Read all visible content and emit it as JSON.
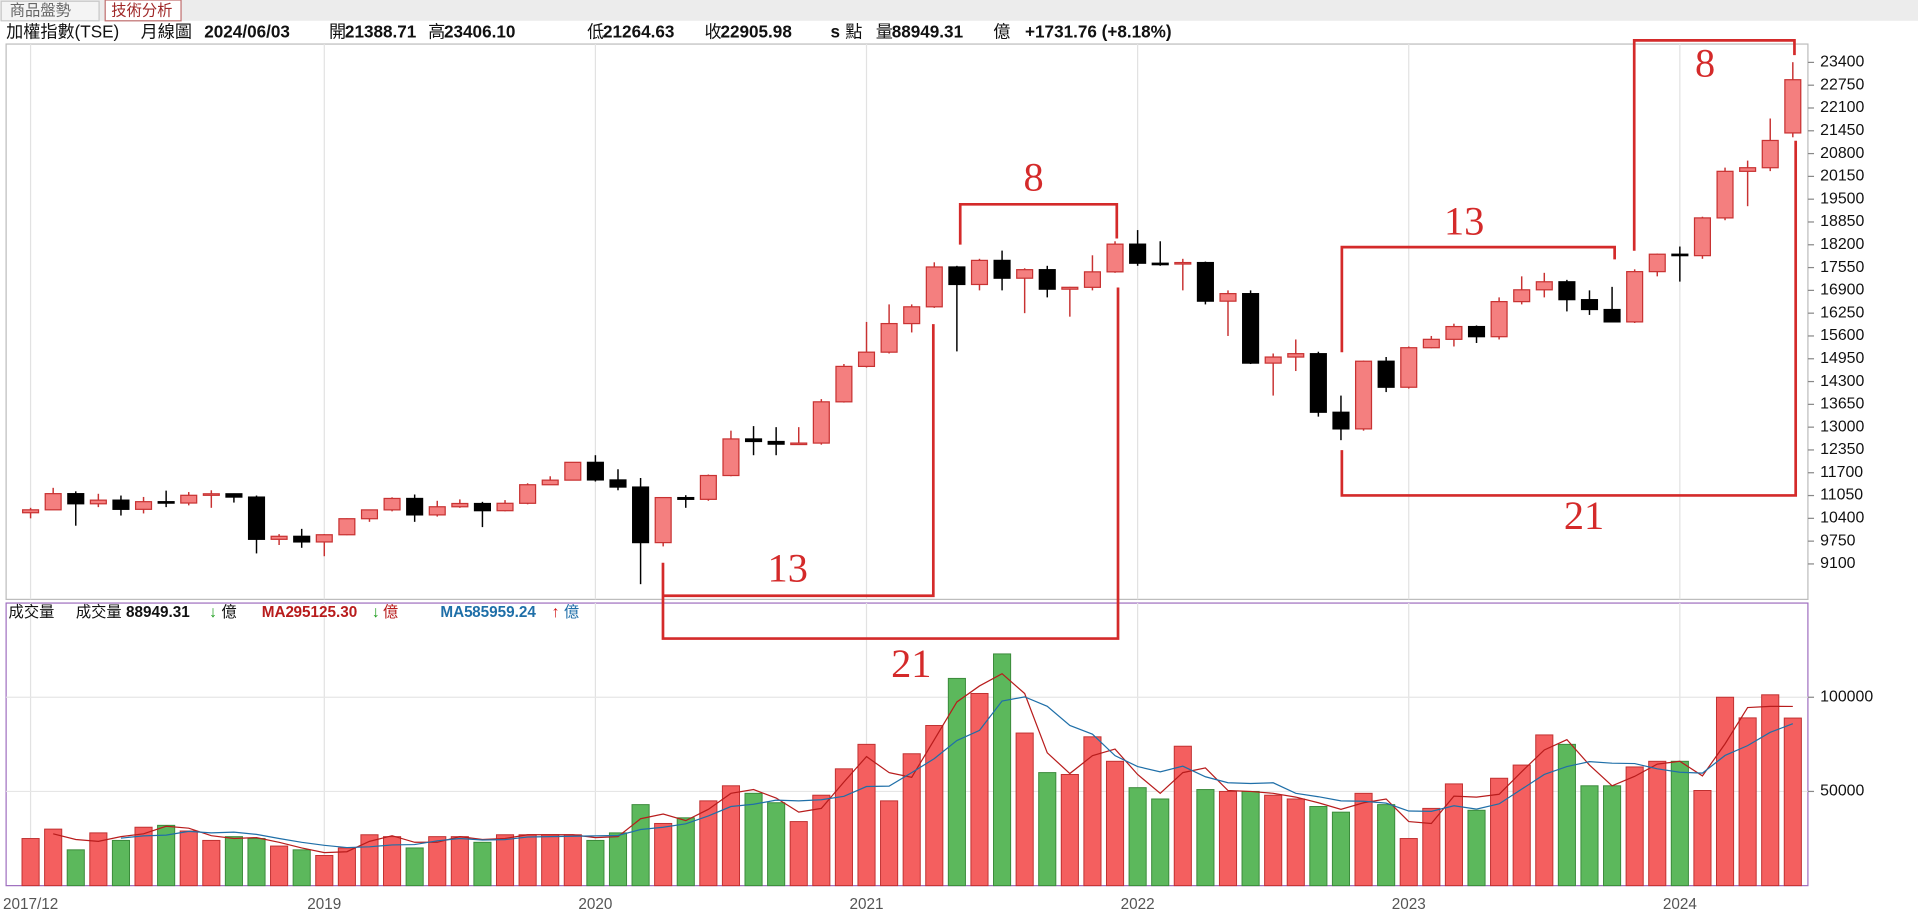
{
  "header": {
    "tabs": [
      "商品盤勢",
      "技術分析"
    ],
    "symbol": "加權指數(TSE)",
    "period": "月線圖",
    "date": "2024/06/03",
    "fields": [
      {
        "label": "開",
        "value": "21388.71"
      },
      {
        "label": "高",
        "value": "23406.10"
      },
      {
        "label": "低",
        "value": "21264.63"
      },
      {
        "label": "收",
        "value": "22905.98"
      }
    ],
    "flag": "s",
    "unit": "點",
    "volume_label": "量",
    "volume": "88949.31",
    "volume_unit": "億",
    "change": "+1731.76 (+8.18%)"
  },
  "chart_data": [
    {
      "type": "candlestick",
      "categories": [
        "2017/12",
        null,
        null,
        null,
        null,
        null,
        null,
        null,
        null,
        null,
        null,
        null,
        null,
        "2019",
        null,
        null,
        null,
        null,
        null,
        null,
        null,
        null,
        null,
        null,
        null,
        "2020",
        null,
        null,
        null,
        null,
        null,
        null,
        null,
        null,
        null,
        null,
        null,
        "2021",
        null,
        null,
        null,
        null,
        null,
        null,
        null,
        null,
        null,
        null,
        null,
        "2022",
        null,
        null,
        null,
        null,
        null,
        null,
        null,
        null,
        null,
        null,
        null,
        "2023",
        null,
        null,
        null,
        null,
        null,
        null,
        null,
        null,
        null,
        null,
        null,
        "2024",
        null,
        null,
        null,
        null,
        null
      ],
      "open": [
        10560,
        10643,
        11104,
        10815,
        10919,
        10657,
        10875,
        10837,
        11057,
        11100,
        11006,
        9802,
        9888,
        9727,
        9932,
        10389,
        10641,
        10967,
        10498,
        10730,
        10823,
        10618,
        10829,
        11358,
        11489,
        11997,
        11495,
        11292,
        9708,
        10992,
        10942,
        11621,
        12664,
        12591,
        12515,
        12546,
        13722,
        14732,
        15138,
        15953,
        16431,
        17567,
        17068,
        17755,
        17247,
        17490,
        16934,
        16987,
        17428,
        18218,
        17674,
        17652,
        17693,
        16592,
        16807,
        14826,
        14999,
        15095,
        13425,
        12950,
        14880,
        14138,
        15265,
        15504,
        15868,
        15579,
        16579,
        16916,
        17145,
        16635,
        16354,
        16001,
        17434,
        17931,
        17890,
        18966,
        20294,
        20397,
        21388.71
      ],
      "high": [
        10700,
        11270,
        11170,
        11100,
        11050,
        11010,
        11190,
        11150,
        11200,
        11110,
        11050,
        9950,
        10100,
        9950,
        10400,
        10650,
        11000,
        11080,
        10900,
        10940,
        10870,
        10920,
        11400,
        11600,
        12000,
        12200,
        11800,
        11550,
        11000,
        11060,
        11650,
        12900,
        13030,
        13000,
        13000,
        13800,
        14800,
        16000,
        16500,
        16500,
        17700,
        17600,
        17800,
        18034,
        17530,
        17600,
        17000,
        17900,
        18300,
        18619,
        18300,
        17800,
        17720,
        16900,
        16900,
        15100,
        15500,
        15150,
        13900,
        14900,
        15000,
        15300,
        15600,
        15950,
        15900,
        16700,
        17300,
        17400,
        17200,
        16900,
        17000,
        17500,
        17950,
        18150,
        19000,
        20400,
        20600,
        21800,
        23406.1
      ],
      "low": [
        10400,
        10640,
        10190,
        10720,
        10480,
        10540,
        10720,
        10770,
        10700,
        10850,
        9400,
        9640,
        9560,
        9320,
        9920,
        10300,
        10600,
        10300,
        10450,
        10700,
        10150,
        10600,
        10800,
        11350,
        11480,
        11450,
        11200,
        8523,
        9600,
        10700,
        10900,
        11600,
        12200,
        12200,
        12500,
        12500,
        13700,
        14700,
        15100,
        15700,
        16400,
        15160,
        16900,
        16900,
        16250,
        16700,
        16150,
        16900,
        17400,
        17600,
        17600,
        16900,
        16500,
        15600,
        14800,
        13900,
        14600,
        13300,
        12629,
        12900,
        14000,
        14100,
        15250,
        15300,
        15400,
        15500,
        16500,
        16700,
        16300,
        16200,
        16000,
        15970,
        17300,
        17150,
        17800,
        18900,
        19300,
        20300,
        21264.63
      ],
      "close": [
        10643,
        11104,
        10815,
        10919,
        10657,
        10875,
        10837,
        11057,
        11100,
        11006,
        9802,
        9888,
        9727,
        9932,
        10389,
        10641,
        10967,
        10498,
        10730,
        10823,
        10618,
        10829,
        11358,
        11489,
        11997,
        11495,
        11292,
        9708,
        10992,
        10942,
        11621,
        12664,
        12591,
        12515,
        12546,
        13722,
        14732,
        15138,
        15953,
        16431,
        17567,
        17068,
        17755,
        17247,
        17490,
        16934,
        16987,
        17428,
        18218,
        17674,
        17652,
        17693,
        16592,
        16807,
        14826,
        14999,
        15095,
        13425,
        12950,
        14880,
        14138,
        15265,
        15504,
        15868,
        15579,
        16579,
        16916,
        17145,
        16635,
        16354,
        16001,
        17434,
        17931,
        17890,
        18966,
        20294,
        20397,
        21174,
        22905.98
      ],
      "up_color": "#f47f7f",
      "down_color": "#000000",
      "ylim": [
        8089,
        23923
      ],
      "yticks": [
        9100,
        9750,
        10400,
        11050,
        11700,
        12350,
        13000,
        13650,
        14300,
        14950,
        15600,
        16250,
        16900,
        17550,
        18200,
        18850,
        19500,
        20150,
        20800,
        21450,
        22100,
        22750,
        23400
      ],
      "grid": true,
      "annotations": [
        {
          "text": "13"
        },
        {
          "text": "21"
        },
        {
          "text": "8"
        },
        {
          "text": "13"
        },
        {
          "text": "21"
        },
        {
          "text": "8"
        }
      ]
    },
    {
      "type": "bar",
      "title": "成交量",
      "series": [
        {
          "name": "成交量",
          "up_color": "#f45f5f",
          "down_color": "#5cb85c",
          "values": [
            25000,
            30000,
            19000,
            28000,
            24000,
            31000,
            32000,
            29000,
            24000,
            26000,
            25000,
            21000,
            19000,
            16000,
            20000,
            27000,
            26000,
            20000,
            26000,
            26000,
            23000,
            27000,
            27000,
            27000,
            27000,
            24000,
            28000,
            43000,
            33000,
            36000,
            45000,
            53000,
            49000,
            44000,
            34000,
            48000,
            62000,
            75000,
            45000,
            70000,
            85000,
            110000,
            102000,
            123000,
            81000,
            60000,
            59000,
            79000,
            66000,
            52000,
            46000,
            74000,
            51000,
            50000,
            50000,
            48000,
            46000,
            42000,
            39000,
            49000,
            43000,
            25000,
            41000,
            54000,
            40000,
            57000,
            64000,
            80000,
            75000,
            53000,
            53000,
            63000,
            66000,
            66000,
            50500,
            100000,
            89046,
            101301.29,
            88949.31
          ]
        },
        {
          "name": "MA2",
          "color": "#b81c1c",
          "values": [
            null,
            27500,
            24500,
            23500,
            26000,
            27500,
            31500,
            30500,
            26500,
            25000,
            25500,
            23000,
            20000,
            17500,
            18000,
            23500,
            26500,
            23000,
            23000,
            26000,
            24500,
            25000,
            27000,
            27000,
            27000,
            25500,
            26000,
            35500,
            38000,
            34500,
            40500,
            49000,
            51000,
            46500,
            39000,
            41000,
            55000,
            68500,
            60000,
            57500,
            77500,
            97500,
            106000,
            112500,
            102000,
            70500,
            59500,
            69000,
            72500,
            59000,
            49000,
            60000,
            62500,
            50500,
            50000,
            49000,
            47000,
            44000,
            40500,
            44000,
            46000,
            34000,
            33000,
            47500,
            47000,
            48500,
            60500,
            72000,
            77500,
            64000,
            53000,
            58000,
            64500,
            66000,
            58250,
            75250,
            94523,
            95174,
            95125.3
          ]
        },
        {
          "name": "MA5",
          "color": "#1f6fa8",
          "values": [
            null,
            null,
            null,
            null,
            25200,
            26400,
            26800,
            28800,
            28000,
            28400,
            27200,
            25000,
            23000,
            21400,
            20200,
            20600,
            21600,
            21800,
            23800,
            25000,
            24200,
            24400,
            25800,
            26000,
            26200,
            26400,
            26600,
            29800,
            31000,
            32800,
            37000,
            42000,
            43200,
            45400,
            45000,
            45600,
            47400,
            52600,
            52800,
            60000,
            67400,
            77000,
            82400,
            98000,
            100200,
            95200,
            85000,
            80400,
            69000,
            63200,
            60400,
            63400,
            57800,
            54600,
            54200,
            54600,
            49000,
            47200,
            45000,
            44800,
            43800,
            39600,
            39400,
            42400,
            40600,
            43400,
            51200,
            59000,
            63200,
            65800,
            65000,
            64800,
            62000,
            60200,
            59700,
            69100,
            74309,
            81369,
            85959.24
          ]
        }
      ],
      "legend": [
        {
          "value": "88949.31",
          "arrow": "↓",
          "arrow_color": "#159a15",
          "unit": "億"
        },
        {
          "value": "95125.30",
          "arrow": "↓",
          "arrow_color": "#159a15",
          "unit": "億"
        },
        {
          "value": "85959.24",
          "arrow": "↑",
          "arrow_color": "#d01010",
          "unit": "億"
        }
      ],
      "ylim": [
        0,
        150000
      ],
      "yticks": [
        50000,
        100000
      ],
      "grid": true
    }
  ]
}
